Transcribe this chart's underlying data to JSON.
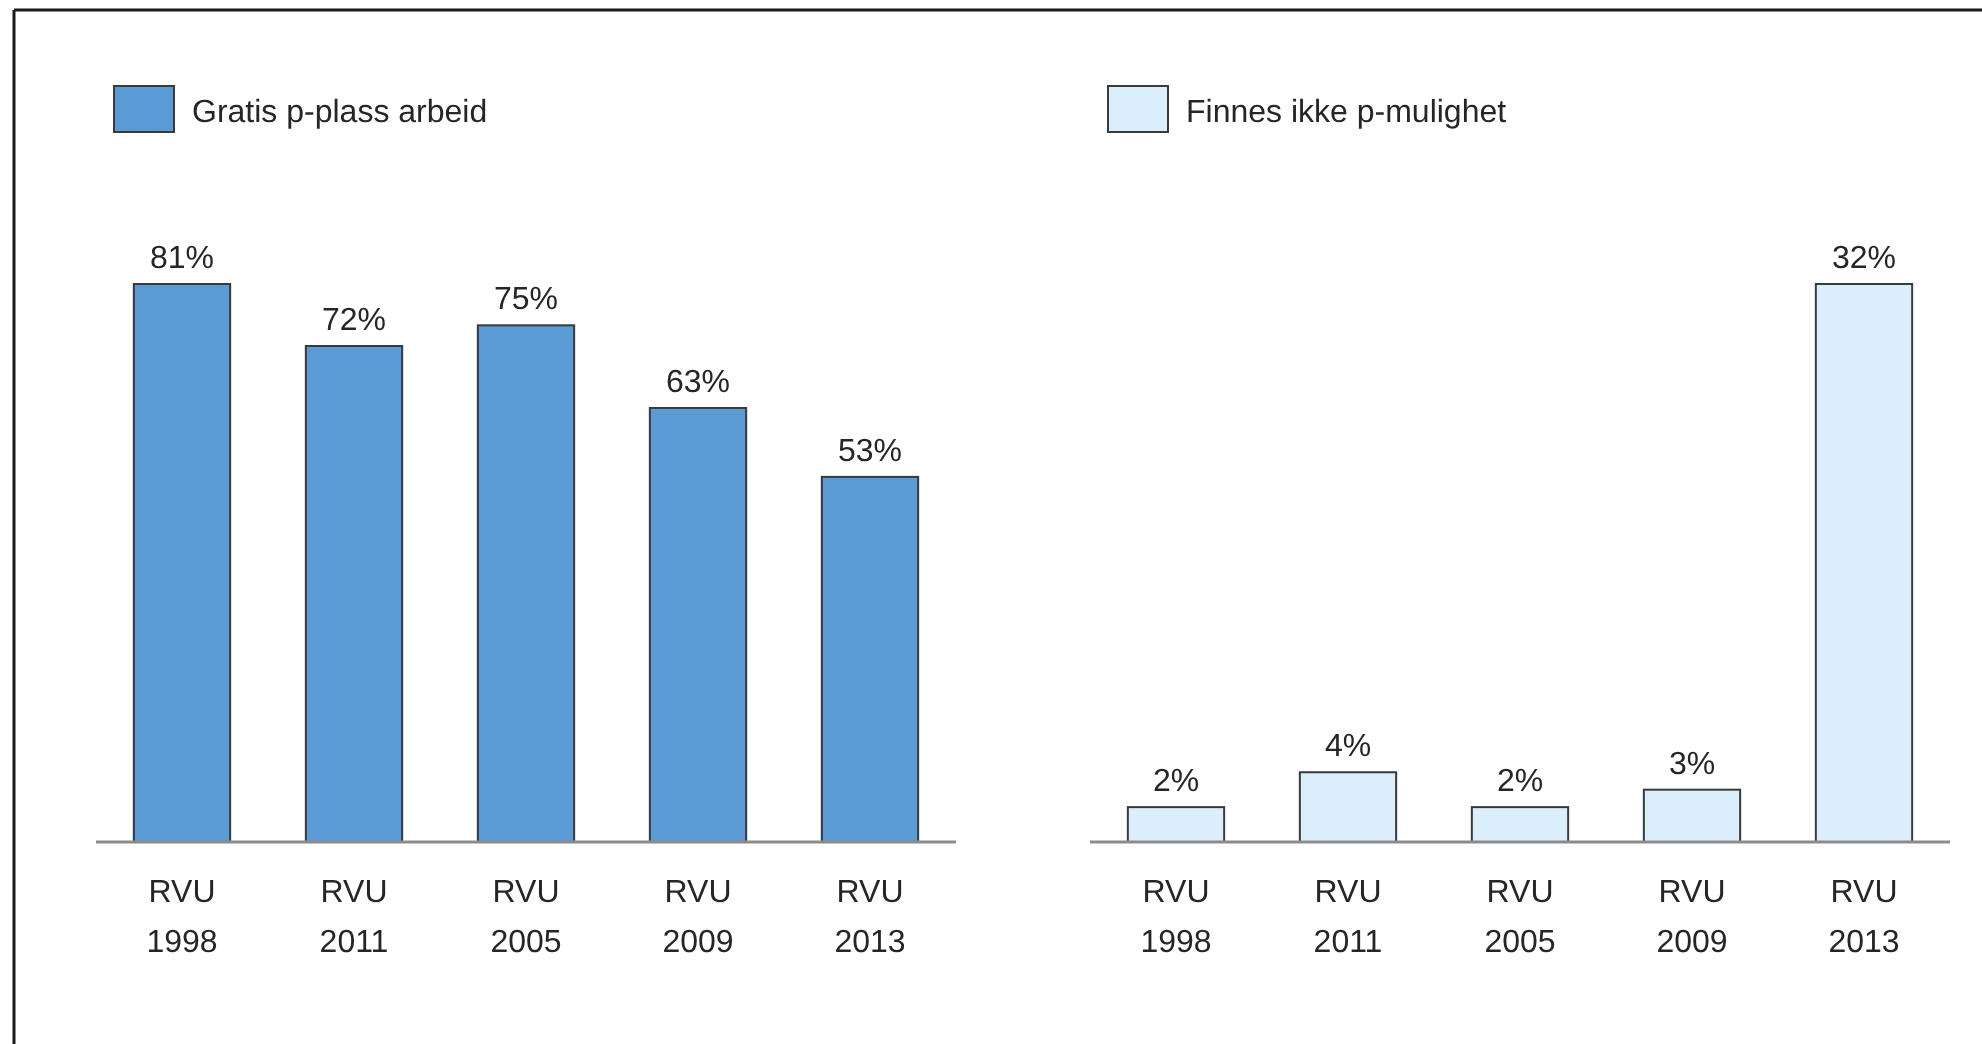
{
  "chart_data": [
    {
      "type": "bar",
      "categories": [
        "RVU 1998",
        "RVU 2011",
        "RVU 2005",
        "RVU 2009",
        "RVU 2013"
      ],
      "series": [
        {
          "name": "Gratis p-plass arbeid",
          "color": "#5b9bd5",
          "values": [
            81,
            72,
            75,
            63,
            53
          ],
          "value_labels": [
            "81%",
            "72%",
            "75%",
            "63%",
            "53%"
          ]
        }
      ],
      "legend": "top left"
    },
    {
      "type": "bar",
      "categories": [
        "RVU 1998",
        "RVU 2011",
        "RVU 2005",
        "RVU 2009",
        "RVU 2013"
      ],
      "series": [
        {
          "name": "Finnes ikke p-mulighet",
          "color": "#dbeefb",
          "values": [
            2,
            4,
            2,
            3,
            32
          ],
          "value_labels": [
            "2%",
            "4%",
            "2%",
            "3%",
            "32%"
          ]
        }
      ],
      "legend": "top left"
    }
  ]
}
